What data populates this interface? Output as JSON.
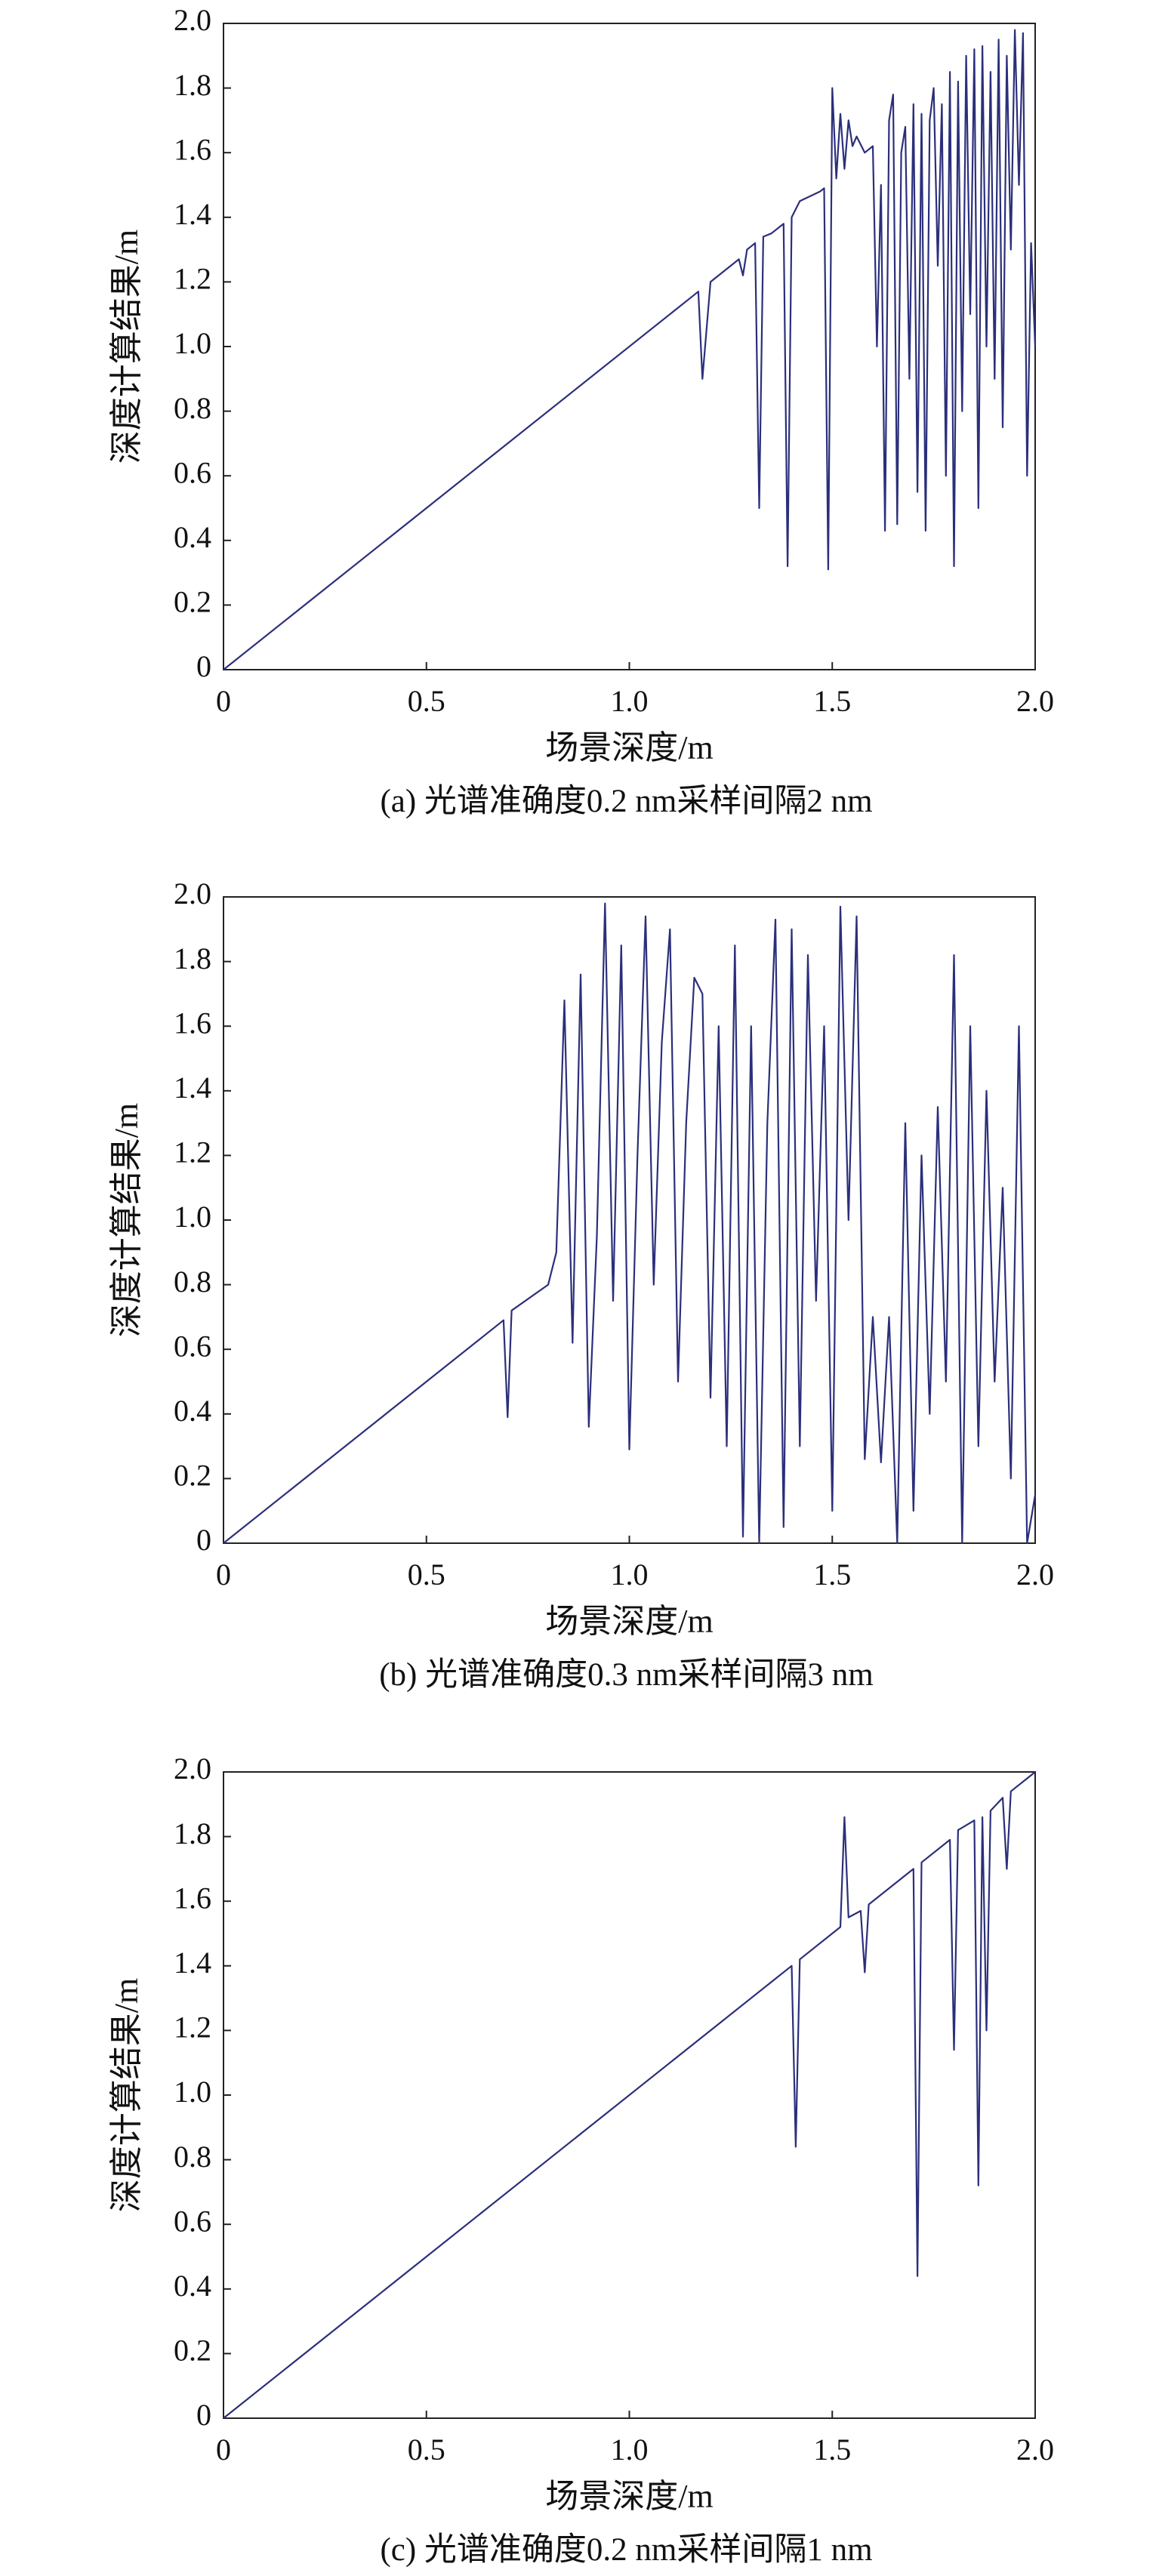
{
  "chart_data": [
    {
      "type": "line",
      "title": "(a) 光谱准确度0.2 nm采样间隔2 nm",
      "x_label": "场景深度/m",
      "y_label": "深度计算结果/m",
      "color": "#2b2f7a",
      "x": [
        0,
        1.15,
        1.17,
        1.18,
        1.2,
        1.27,
        1.28,
        1.29,
        1.3,
        1.31,
        1.32,
        1.33,
        1.35,
        1.37,
        1.38,
        1.39,
        1.4,
        1.42,
        1.47,
        1.48,
        1.49,
        1.5,
        1.51,
        1.52,
        1.53,
        1.54,
        1.55,
        1.56,
        1.58,
        1.6,
        1.61,
        1.62,
        1.63,
        1.64,
        1.65,
        1.66,
        1.67,
        1.68,
        1.69,
        1.7,
        1.71,
        1.72,
        1.73,
        1.74,
        1.75,
        1.76,
        1.77,
        1.78,
        1.79,
        1.8,
        1.81,
        1.82,
        1.83,
        1.84,
        1.85,
        1.86,
        1.87,
        1.88,
        1.89,
        1.9,
        1.91,
        1.92,
        1.93,
        1.94,
        1.95,
        1.96,
        1.97,
        1.98,
        1.99,
        2.0
      ],
      "values": [
        0,
        1.15,
        1.17,
        0.9,
        1.2,
        1.27,
        1.22,
        1.3,
        1.31,
        1.32,
        0.5,
        1.34,
        1.35,
        1.37,
        1.38,
        0.32,
        1.4,
        1.45,
        1.48,
        1.49,
        0.31,
        1.8,
        1.52,
        1.72,
        1.55,
        1.7,
        1.62,
        1.65,
        1.6,
        1.62,
        1.0,
        1.5,
        0.43,
        1.7,
        1.78,
        0.45,
        1.6,
        1.68,
        0.9,
        1.75,
        0.55,
        1.72,
        0.43,
        1.7,
        1.8,
        1.25,
        1.75,
        0.6,
        1.85,
        0.32,
        1.82,
        0.8,
        1.9,
        1.1,
        1.92,
        0.5,
        1.93,
        1.0,
        1.85,
        0.9,
        1.95,
        0.75,
        1.9,
        1.3,
        1.98,
        1.5,
        1.97,
        0.6,
        1.32,
        1.0
      ],
      "xlim": [
        0,
        2
      ],
      "ylim": [
        0,
        2
      ],
      "xticks": [
        0,
        0.5,
        {
          "value": 1,
          "label": "1.0"
        },
        1.5,
        {
          "value": 2,
          "label": "2.0"
        }
      ],
      "yticks": [
        0,
        0.2,
        0.4,
        0.6,
        0.8,
        {
          "value": 1,
          "label": "1.0"
        },
        1.2,
        1.4,
        1.6,
        1.8,
        {
          "value": 2,
          "label": "2.0"
        }
      ]
    },
    {
      "type": "line",
      "title": "(b) 光谱准确度0.3 nm采样间隔3 nm",
      "x_label": "场景深度/m",
      "y_label": "深度计算结果/m",
      "color": "#2b2f7a",
      "x": [
        0,
        0.69,
        0.7,
        0.71,
        0.8,
        0.82,
        0.84,
        0.86,
        0.88,
        0.9,
        0.92,
        0.94,
        0.96,
        0.98,
        1.0,
        1.02,
        1.04,
        1.06,
        1.08,
        1.1,
        1.12,
        1.14,
        1.16,
        1.18,
        1.2,
        1.22,
        1.24,
        1.26,
        1.28,
        1.3,
        1.32,
        1.34,
        1.36,
        1.38,
        1.4,
        1.42,
        1.44,
        1.46,
        1.48,
        1.5,
        1.52,
        1.54,
        1.56,
        1.58,
        1.6,
        1.62,
        1.64,
        1.66,
        1.68,
        1.7,
        1.72,
        1.74,
        1.76,
        1.78,
        1.8,
        1.82,
        1.84,
        1.86,
        1.88,
        1.9,
        1.92,
        1.94,
        1.96,
        1.98,
        2.0
      ],
      "values": [
        0,
        0.69,
        0.39,
        0.72,
        0.8,
        0.9,
        1.68,
        0.62,
        1.76,
        0.36,
        0.95,
        1.98,
        0.75,
        1.85,
        0.29,
        1.2,
        1.94,
        0.8,
        1.55,
        1.9,
        0.5,
        1.3,
        1.75,
        1.7,
        0.45,
        1.6,
        0.3,
        1.85,
        0.02,
        1.6,
        0.0,
        1.3,
        1.93,
        0.05,
        1.9,
        0.3,
        1.82,
        0.75,
        1.6,
        0.1,
        1.97,
        1.0,
        1.94,
        0.26,
        0.7,
        0.25,
        0.7,
        0.0,
        1.3,
        0.1,
        1.2,
        0.4,
        1.35,
        0.5,
        1.82,
        0.0,
        1.6,
        0.3,
        1.4,
        0.5,
        1.1,
        0.2,
        1.6,
        0.0,
        0.15
      ],
      "xlim": [
        0,
        2
      ],
      "ylim": [
        0,
        2
      ],
      "xticks": [
        0,
        0.5,
        {
          "value": 1,
          "label": "1.0"
        },
        1.5,
        {
          "value": 2,
          "label": "2.0"
        }
      ],
      "yticks": [
        0,
        0.2,
        0.4,
        0.6,
        0.8,
        {
          "value": 1,
          "label": "1.0"
        },
        1.2,
        1.4,
        1.6,
        1.8,
        {
          "value": 2,
          "label": "2.0"
        }
      ]
    },
    {
      "type": "line",
      "title": "(c) 光谱准确度0.2 nm采样间隔1 nm",
      "x_label": "场景深度/m",
      "y_label": "深度计算结果/m",
      "color": "#2b2f7a",
      "x": [
        0,
        1.4,
        1.41,
        1.42,
        1.52,
        1.53,
        1.54,
        1.57,
        1.58,
        1.59,
        1.7,
        1.71,
        1.72,
        1.79,
        1.8,
        1.81,
        1.85,
        1.86,
        1.87,
        1.88,
        1.89,
        1.92,
        1.93,
        1.94,
        1.98,
        2.0
      ],
      "values": [
        0,
        1.4,
        0.84,
        1.42,
        1.52,
        1.86,
        1.55,
        1.57,
        1.38,
        1.59,
        1.7,
        0.44,
        1.72,
        1.79,
        1.14,
        1.82,
        1.85,
        0.72,
        1.86,
        1.2,
        1.88,
        1.92,
        1.7,
        1.94,
        1.98,
        2.0
      ],
      "xlim": [
        0,
        2
      ],
      "ylim": [
        0,
        2
      ],
      "xticks": [
        0,
        0.5,
        {
          "value": 1,
          "label": "1.0"
        },
        1.5,
        {
          "value": 2,
          "label": "2.0"
        }
      ],
      "yticks": [
        0,
        0.2,
        0.4,
        0.6,
        0.8,
        {
          "value": 1,
          "label": "1.0"
        },
        1.2,
        1.4,
        1.6,
        1.8,
        {
          "value": 2,
          "label": "2.0"
        }
      ]
    }
  ]
}
